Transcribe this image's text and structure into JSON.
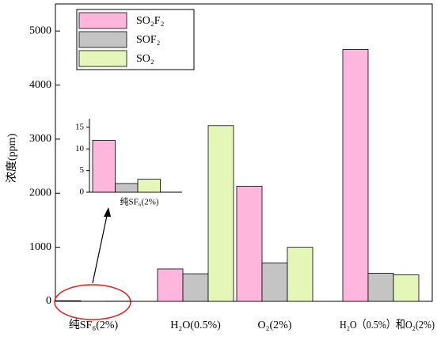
{
  "chart_data": {
    "type": "bar",
    "y_label": "浓度(ppm)",
    "categories": [
      "纯SF₆(2%)",
      "H₂O(0.5%)",
      "O₂(2%)",
      "H₂O（0.5%）和O₂(2%)"
    ],
    "series": [
      {
        "name": "SO₂F₂",
        "color": "#ffb6dc",
        "values": [
          12,
          600,
          2130,
          4660
        ]
      },
      {
        "name": "SOF₂",
        "color": "#c4c4c4",
        "values": [
          2,
          510,
          710,
          520
        ]
      },
      {
        "name": "SO₂",
        "color": "#e4f7b8",
        "values": [
          3,
          3250,
          1000,
          490
        ]
      }
    ],
    "ylim": [
      0,
      5500
    ],
    "yticks": [
      0,
      1000,
      2000,
      3000,
      4000,
      5000
    ],
    "inset": {
      "ylim": [
        0,
        17
      ],
      "yticks": [
        0,
        5,
        10,
        15
      ]
    }
  }
}
